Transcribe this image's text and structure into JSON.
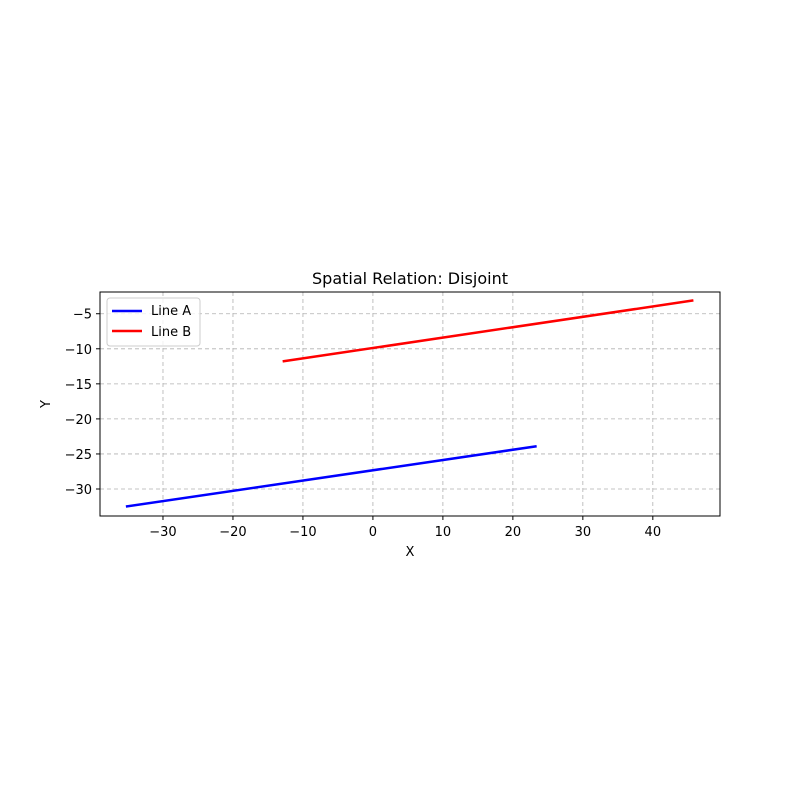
{
  "chart_data": {
    "type": "line",
    "title": "Spatial Relation: Disjoint",
    "xlabel": "X",
    "ylabel": "Y",
    "xlim": [
      -39.0,
      49.6
    ],
    "ylim": [
      -33.85,
      -1.9
    ],
    "xticks": [
      -30,
      -20,
      -10,
      0,
      10,
      20,
      30,
      40
    ],
    "yticks": [
      -30,
      -25,
      -20,
      -15,
      -10,
      -5
    ],
    "xtick_labels": [
      "−30",
      "−20",
      "−10",
      "0",
      "10",
      "20",
      "30",
      "40"
    ],
    "ytick_labels": [
      "−30",
      "−25",
      "−20",
      "−15",
      "−10",
      "−5"
    ],
    "grid": true,
    "legend_position": "upper-left",
    "series": [
      {
        "name": "Line A",
        "color": "#0000ff",
        "x": [
          -35.3,
          23.4
        ],
        "y": [
          -32.5,
          -23.9
        ]
      },
      {
        "name": "Line B",
        "color": "#ff0000",
        "x": [
          -12.9,
          45.8
        ],
        "y": [
          -11.8,
          -3.1
        ]
      }
    ]
  }
}
